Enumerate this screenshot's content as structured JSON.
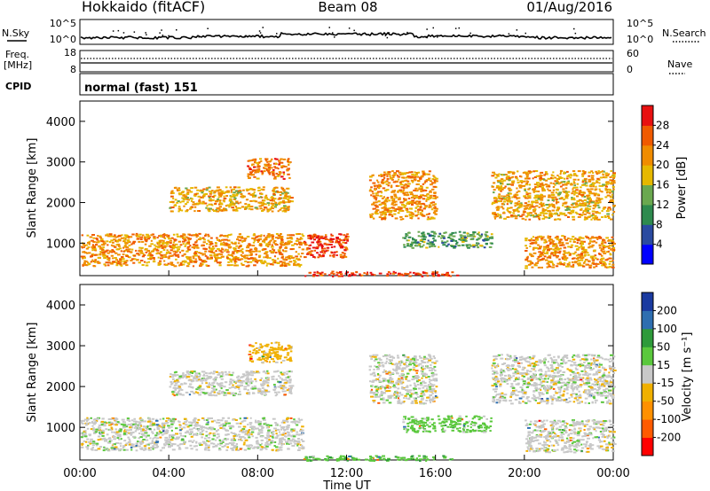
{
  "header": {
    "station": "Hokkaido (fitACF)",
    "beam": "Beam 08",
    "date": "01/Aug/2016"
  },
  "top_strip": {
    "nsky_label": "N.Sky",
    "nsky_ticks": [
      "10^5",
      "10^0"
    ],
    "nsky_right_ticks": [
      "10^5",
      "10^0"
    ],
    "nsearch_label": "N.Search",
    "freq_label_line1": "Freq.",
    "freq_label_line2": "[MHz]",
    "freq_ticks": [
      "18",
      "8"
    ],
    "nave_ticks": [
      "60",
      "0"
    ],
    "nave_label": "Nave",
    "cpid_label": "CPID",
    "cpid_value": "normal (fast) 151"
  },
  "x_axis": {
    "label": "Time UT",
    "ticks": [
      "00:00",
      "04:00",
      "08:00",
      "12:00",
      "16:00",
      "20:00",
      "00:00"
    ],
    "tick_hours": [
      0,
      4,
      8,
      12,
      16,
      20,
      24
    ]
  },
  "colors": {
    "power_scale": [
      "#0000ff",
      "#2a4aa0",
      "#2e8a4e",
      "#6aa84f",
      "#e6b800",
      "#f08c00",
      "#f05a00",
      "#e81010"
    ],
    "velocity_scale": [
      "#ff0000",
      "#ff5a00",
      "#ff9000",
      "#f0b000",
      "#c8c8c8",
      "#5ac83c",
      "#2e9a3a",
      "#2e6eb0",
      "#1a3aa0"
    ]
  },
  "chart_data": [
    {
      "type": "heatmap",
      "name": "power",
      "ylabel": "Slant Range [km]",
      "xlabel": "",
      "xlim": [
        0,
        24
      ],
      "ylim": [
        200,
        4500
      ],
      "yticks": [
        1000,
        2000,
        3000,
        4000
      ],
      "colorbar": {
        "label": "Power [dB]",
        "ticks": [
          4,
          8,
          12,
          16,
          20,
          24,
          28
        ],
        "range": [
          0,
          32
        ]
      },
      "echo_regions": [
        {
          "t0": 0.0,
          "t1": 10.0,
          "r0": 450,
          "r1": 1250,
          "value": 22
        },
        {
          "t0": 4.0,
          "t1": 9.5,
          "r0": 1800,
          "r1": 2400,
          "value": 20
        },
        {
          "t0": 7.5,
          "t1": 9.5,
          "r0": 2600,
          "r1": 3100,
          "value": 24
        },
        {
          "t0": 10.0,
          "t1": 12.0,
          "r0": 650,
          "r1": 1250,
          "value": 28
        },
        {
          "t0": 13.0,
          "t1": 16.0,
          "r0": 1600,
          "r1": 2800,
          "value": 22
        },
        {
          "t0": 10.0,
          "t1": 17.0,
          "r0": 200,
          "r1": 320,
          "value": 28
        },
        {
          "t0": 14.5,
          "t1": 18.5,
          "r0": 900,
          "r1": 1300,
          "value": 12
        },
        {
          "t0": 18.5,
          "t1": 24.0,
          "r0": 1600,
          "r1": 2800,
          "value": 20
        },
        {
          "t0": 20.0,
          "t1": 24.0,
          "r0": 400,
          "r1": 1200,
          "value": 22
        }
      ]
    },
    {
      "type": "heatmap",
      "name": "velocity",
      "ylabel": "Slant Range [km]",
      "xlabel": "Time UT",
      "xlim": [
        0,
        24
      ],
      "ylim": [
        200,
        4500
      ],
      "yticks": [
        1000,
        2000,
        3000,
        4000
      ],
      "colorbar": {
        "label": "Velocity [m s⁻¹]",
        "ticks": [
          200,
          100,
          50,
          15,
          -15,
          -50,
          -100,
          -200
        ],
        "range": [
          -250,
          250
        ]
      },
      "echo_regions": [
        {
          "t0": 0.0,
          "t1": 10.0,
          "r0": 450,
          "r1": 1250,
          "value": 0
        },
        {
          "t0": 4.0,
          "t1": 9.5,
          "r0": 1800,
          "r1": 2400,
          "value": 0
        },
        {
          "t0": 7.5,
          "t1": 9.5,
          "r0": 2600,
          "r1": 3100,
          "value": -30
        },
        {
          "t0": 13.0,
          "t1": 16.0,
          "r0": 1600,
          "r1": 2800,
          "value": 0
        },
        {
          "t0": 10.0,
          "t1": 17.0,
          "r0": 200,
          "r1": 320,
          "value": 40
        },
        {
          "t0": 14.5,
          "t1": 18.5,
          "r0": 900,
          "r1": 1300,
          "value": 30
        },
        {
          "t0": 18.5,
          "t1": 24.0,
          "r0": 1600,
          "r1": 2800,
          "value": 0
        },
        {
          "t0": 20.0,
          "t1": 24.0,
          "r0": 400,
          "r1": 1200,
          "value": 0
        }
      ]
    }
  ]
}
